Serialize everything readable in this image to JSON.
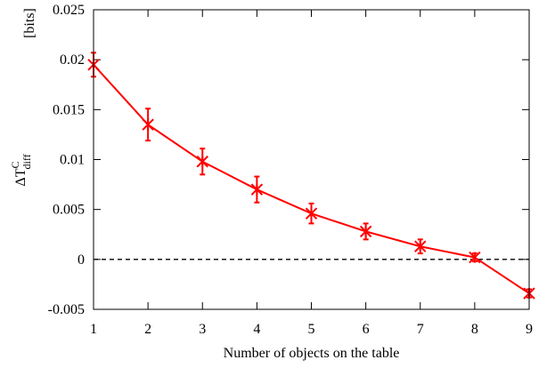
{
  "chart_data": {
    "type": "line",
    "xlabel": "Number of objects on the table",
    "ylabel": {
      "main": "ΔT",
      "superscript": "C",
      "subscript": "diff",
      "unit": "[bits]"
    },
    "xlim": [
      1,
      9
    ],
    "ylim": [
      -0.005,
      0.025
    ],
    "x_ticks": [
      1,
      2,
      3,
      4,
      5,
      6,
      7,
      8,
      9
    ],
    "x_tick_labels": [
      "1",
      "2",
      "3",
      "4",
      "5",
      "6",
      "7",
      "8",
      "9"
    ],
    "y_ticks": [
      -0.005,
      0,
      0.005,
      0.01,
      0.015,
      0.02,
      0.025
    ],
    "y_tick_labels": [
      "-0.005",
      "0",
      "0.005",
      "0.01",
      "0.015",
      "0.02",
      "0.025"
    ],
    "grid": false,
    "reference_line": {
      "y": 0,
      "style": "dashed",
      "color": "#000000"
    },
    "series": [
      {
        "color": "#ff0000",
        "marker": "asterisk",
        "x": [
          1,
          2,
          3,
          4,
          5,
          6,
          7,
          8,
          9
        ],
        "y": [
          0.0195,
          0.0135,
          0.0098,
          0.007,
          0.0046,
          0.0028,
          0.0013,
          0.0002,
          -0.0034
        ],
        "error": [
          0.0012,
          0.0016,
          0.0013,
          0.0013,
          0.001,
          0.0008,
          0.0007,
          0.0004,
          0.0004
        ]
      }
    ]
  }
}
